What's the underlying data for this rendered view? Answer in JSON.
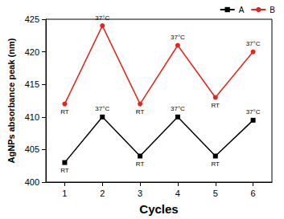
{
  "chart_data": {
    "type": "line",
    "x_label": "Cycles",
    "y_label": "AgNPs absorbance peak (nm)",
    "categories": [
      "1",
      "2",
      "3",
      "4",
      "5",
      "6"
    ],
    "series": [
      {
        "name": "A",
        "color": "#000000",
        "marker": "square",
        "values": [
          403,
          410,
          404,
          410,
          404,
          409.5
        ],
        "annotations": [
          "RT",
          "37°C",
          "RT",
          "37°C",
          "RT",
          "37°C"
        ]
      },
      {
        "name": "B",
        "color": "#e8231a",
        "marker": "circle",
        "values": [
          412,
          424,
          412,
          421,
          413,
          420
        ],
        "annotations": [
          "RT",
          "37°C",
          "RT",
          "37°C",
          "RT",
          "37°C"
        ]
      }
    ],
    "ylim": [
      400,
      425
    ],
    "yticks": [
      400,
      405,
      410,
      415,
      420,
      425
    ],
    "grid": false,
    "legend": "upper right"
  }
}
